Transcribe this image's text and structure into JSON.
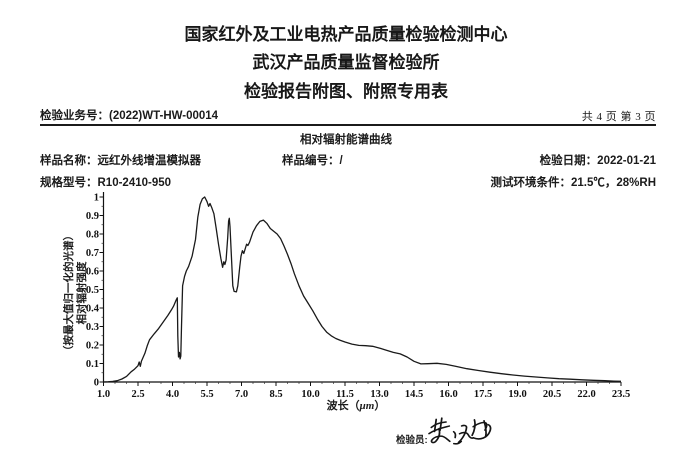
{
  "header": {
    "title1": "国家红外及工业电热产品质量检验检测中心",
    "title2": "武汉产品质量监督检验所",
    "title3": "检验报告附图、附照专用表"
  },
  "info": {
    "business_no_label": "检验业务号：",
    "business_no": "(2022)WT-HW-00014",
    "pages": "共 4 页 第 3 页",
    "section_title": "相对辐射能谱曲线",
    "sample_name_label": "样品名称：",
    "sample_name": "远红外线增温模拟器",
    "sample_no_label": "样品编号：",
    "sample_no": "/",
    "test_date_label": "检验日期：",
    "test_date": "2022-01-21",
    "model_label": "规格型号：",
    "model": "R10-2410-950",
    "env_label": "测试环境条件：",
    "env": "21.5℃，28%RH"
  },
  "footer": {
    "inspector_label": "检验员:",
    "inspector_signature": "黄汝伟"
  },
  "chart_data": {
    "type": "line",
    "title": "相对辐射能谱曲线",
    "xlabel": "波长（μm）",
    "ylabel_line1": "相对辐射强度",
    "ylabel_line2": "（按最大值归一化的光谱）",
    "xlim": [
      1.0,
      23.5
    ],
    "ylim": [
      0,
      1
    ],
    "grid": false,
    "legend": false,
    "x_major_ticks": [
      1.0,
      2.5,
      4.0,
      5.5,
      7.0,
      8.5,
      10.0,
      11.5,
      13.0,
      14.5,
      16.0,
      17.5,
      19.0,
      20.5,
      22.0,
      23.5
    ],
    "y_major_ticks": [
      0,
      0.1,
      0.2,
      0.3,
      0.4,
      0.5,
      0.6,
      0.7,
      0.8,
      0.9,
      1.0
    ],
    "series": [
      {
        "name": "relative-spectral-radiance",
        "x": [
          1.0,
          1.2,
          1.4,
          1.6,
          1.8,
          2.0,
          2.2,
          2.35,
          2.5,
          2.55,
          2.6,
          2.65,
          2.8,
          2.9,
          3.0,
          3.2,
          3.4,
          3.6,
          3.8,
          3.95,
          4.05,
          4.15,
          4.21,
          4.23,
          4.26,
          4.3,
          4.33,
          4.36,
          4.39,
          4.44,
          4.52,
          4.6,
          4.7,
          4.85,
          5.0,
          5.1,
          5.2,
          5.3,
          5.4,
          5.5,
          5.57,
          5.63,
          5.7,
          5.8,
          5.9,
          6.0,
          6.1,
          6.18,
          6.23,
          6.28,
          6.33,
          6.4,
          6.44,
          6.47,
          6.5,
          6.56,
          6.62,
          6.68,
          6.78,
          6.84,
          6.92,
          6.98,
          7.04,
          7.1,
          7.16,
          7.22,
          7.28,
          7.35,
          7.5,
          7.65,
          7.8,
          7.95,
          8.1,
          8.25,
          8.4,
          8.55,
          8.7,
          8.85,
          9.0,
          9.15,
          9.3,
          9.5,
          9.7,
          9.9,
          10.1,
          10.3,
          10.5,
          10.7,
          10.9,
          11.1,
          11.3,
          11.5,
          11.8,
          12.1,
          12.4,
          12.7,
          13.0,
          13.3,
          13.6,
          13.9,
          14.2,
          14.5,
          14.8,
          15.1,
          15.5,
          15.9,
          16.3,
          16.8,
          17.3,
          17.8,
          18.3,
          18.8,
          19.3,
          19.8,
          20.3,
          20.8,
          21.3,
          21.8,
          22.3,
          22.8,
          23.2,
          23.5
        ],
        "y": [
          0,
          0.001,
          0.003,
          0.007,
          0.016,
          0.03,
          0.055,
          0.07,
          0.088,
          0.108,
          0.085,
          0.112,
          0.155,
          0.195,
          0.228,
          0.26,
          0.29,
          0.325,
          0.36,
          0.39,
          0.41,
          0.44,
          0.455,
          0.25,
          0.135,
          0.16,
          0.125,
          0.14,
          0.3,
          0.52,
          0.57,
          0.6,
          0.625,
          0.68,
          0.77,
          0.89,
          0.96,
          0.99,
          1.0,
          0.975,
          0.95,
          0.965,
          0.945,
          0.91,
          0.83,
          0.745,
          0.67,
          0.62,
          0.65,
          0.635,
          0.66,
          0.78,
          0.87,
          0.885,
          0.84,
          0.68,
          0.52,
          0.49,
          0.487,
          0.52,
          0.62,
          0.68,
          0.71,
          0.695,
          0.72,
          0.745,
          0.738,
          0.755,
          0.81,
          0.845,
          0.868,
          0.875,
          0.858,
          0.83,
          0.815,
          0.8,
          0.775,
          0.735,
          0.69,
          0.64,
          0.585,
          0.52,
          0.465,
          0.425,
          0.385,
          0.34,
          0.3,
          0.27,
          0.25,
          0.235,
          0.225,
          0.216,
          0.205,
          0.198,
          0.196,
          0.193,
          0.183,
          0.172,
          0.16,
          0.152,
          0.135,
          0.112,
          0.098,
          0.099,
          0.101,
          0.095,
          0.085,
          0.072,
          0.062,
          0.053,
          0.045,
          0.038,
          0.032,
          0.027,
          0.022,
          0.018,
          0.015,
          0.012,
          0.009,
          0.007,
          0.005,
          0.004
        ]
      }
    ]
  }
}
